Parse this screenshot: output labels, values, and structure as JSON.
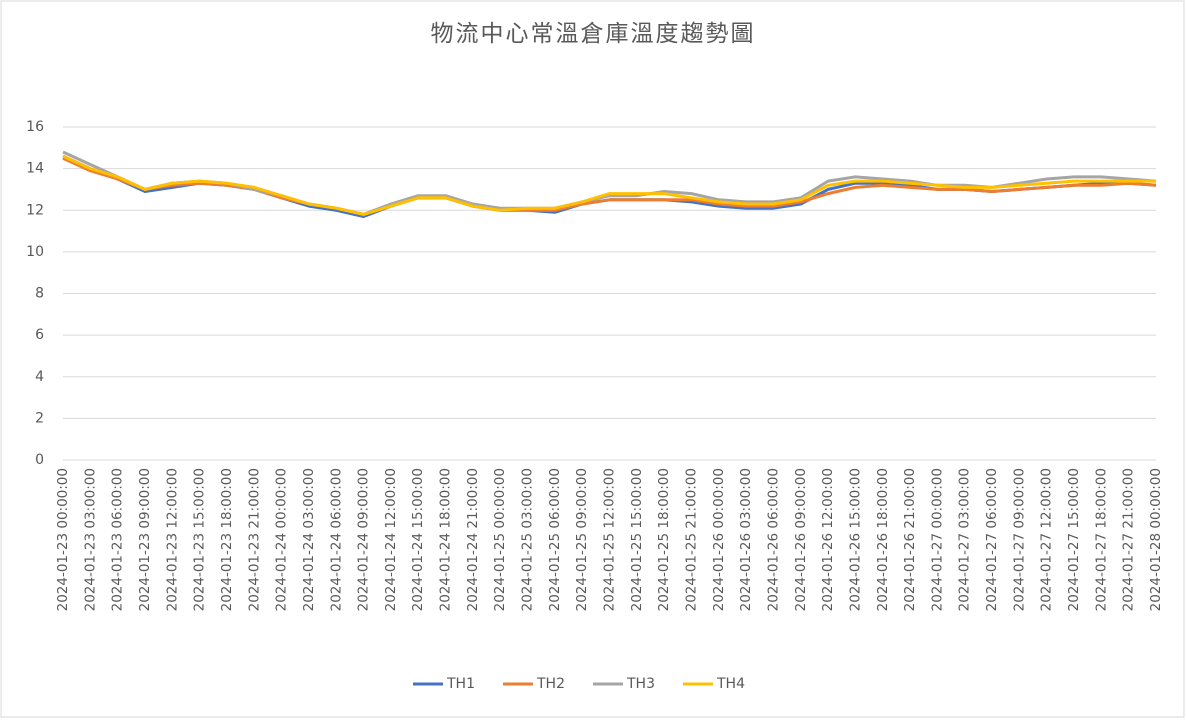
{
  "chart_data": {
    "type": "line",
    "title": "物流中心常溫倉庫溫度趨勢圖",
    "categories": [
      "2024-01-23 00:00:00",
      "2024-01-23 03:00:00",
      "2024-01-23 06:00:00",
      "2024-01-23 09:00:00",
      "2024-01-23 12:00:00",
      "2024-01-23 15:00:00",
      "2024-01-23 18:00:00",
      "2024-01-23 21:00:00",
      "2024-01-24 00:00:00",
      "2024-01-24 03:00:00",
      "2024-01-24 06:00:00",
      "2024-01-24 09:00:00",
      "2024-01-24 12:00:00",
      "2024-01-24 15:00:00",
      "2024-01-24 18:00:00",
      "2024-01-24 21:00:00",
      "2024-01-25 00:00:00",
      "2024-01-25 03:00:00",
      "2024-01-25 06:00:00",
      "2024-01-25 09:00:00",
      "2024-01-25 12:00:00",
      "2024-01-25 15:00:00",
      "2024-01-25 18:00:00",
      "2024-01-25 21:00:00",
      "2024-01-26 00:00:00",
      "2024-01-26 03:00:00",
      "2024-01-26 06:00:00",
      "2024-01-26 09:00:00",
      "2024-01-26 12:00:00",
      "2024-01-26 15:00:00",
      "2024-01-26 18:00:00",
      "2024-01-26 21:00:00",
      "2024-01-27 00:00:00",
      "2024-01-27 03:00:00",
      "2024-01-27 06:00:00",
      "2024-01-27 09:00:00",
      "2024-01-27 12:00:00",
      "2024-01-27 15:00:00",
      "2024-01-27 18:00:00",
      "2024-01-27 21:00:00",
      "2024-01-28 00:00:00"
    ],
    "series": [
      {
        "name": "TH1",
        "color": "#4472c4",
        "values": [
          14.6,
          14.0,
          13.5,
          12.9,
          13.1,
          13.3,
          13.2,
          13.0,
          12.6,
          12.2,
          12.0,
          11.7,
          12.2,
          12.6,
          12.6,
          12.2,
          12.0,
          12.0,
          11.9,
          12.3,
          12.5,
          12.5,
          12.5,
          12.4,
          12.2,
          12.1,
          12.1,
          12.3,
          13.0,
          13.3,
          13.3,
          13.2,
          13.0,
          13.0,
          12.9,
          13.0,
          13.1,
          13.2,
          13.3,
          13.3,
          13.2
        ]
      },
      {
        "name": "TH2",
        "color": "#ed7d31",
        "values": [
          14.5,
          13.9,
          13.5,
          13.0,
          13.2,
          13.3,
          13.2,
          13.0,
          12.6,
          12.3,
          12.1,
          11.8,
          12.2,
          12.6,
          12.6,
          12.2,
          12.0,
          12.0,
          12.0,
          12.3,
          12.5,
          12.5,
          12.5,
          12.5,
          12.3,
          12.2,
          12.2,
          12.4,
          12.8,
          13.1,
          13.2,
          13.1,
          13.0,
          13.0,
          12.9,
          13.0,
          13.1,
          13.2,
          13.2,
          13.3,
          13.2
        ]
      },
      {
        "name": "TH3",
        "color": "#a5a5a5",
        "values": [
          14.8,
          14.2,
          13.6,
          13.0,
          13.3,
          13.4,
          13.3,
          13.0,
          12.7,
          12.3,
          12.1,
          11.8,
          12.3,
          12.7,
          12.7,
          12.3,
          12.1,
          12.1,
          12.1,
          12.4,
          12.7,
          12.7,
          12.9,
          12.8,
          12.5,
          12.4,
          12.4,
          12.6,
          13.4,
          13.6,
          13.5,
          13.4,
          13.2,
          13.2,
          13.1,
          13.3,
          13.5,
          13.6,
          13.6,
          13.5,
          13.4
        ]
      },
      {
        "name": "TH4",
        "color": "#ffc000",
        "values": [
          14.6,
          14.0,
          13.6,
          13.0,
          13.3,
          13.4,
          13.3,
          13.1,
          12.7,
          12.3,
          12.1,
          11.8,
          12.2,
          12.6,
          12.6,
          12.2,
          12.0,
          12.1,
          12.1,
          12.4,
          12.8,
          12.8,
          12.8,
          12.6,
          12.4,
          12.3,
          12.3,
          12.5,
          13.2,
          13.4,
          13.4,
          13.3,
          13.2,
          13.1,
          13.1,
          13.2,
          13.3,
          13.4,
          13.4,
          13.4,
          13.4
        ]
      }
    ],
    "ylim": [
      0,
      16
    ],
    "yticks": [
      0,
      2,
      4,
      6,
      8,
      10,
      12,
      14,
      16
    ],
    "grid": true,
    "legend": "bottom"
  }
}
